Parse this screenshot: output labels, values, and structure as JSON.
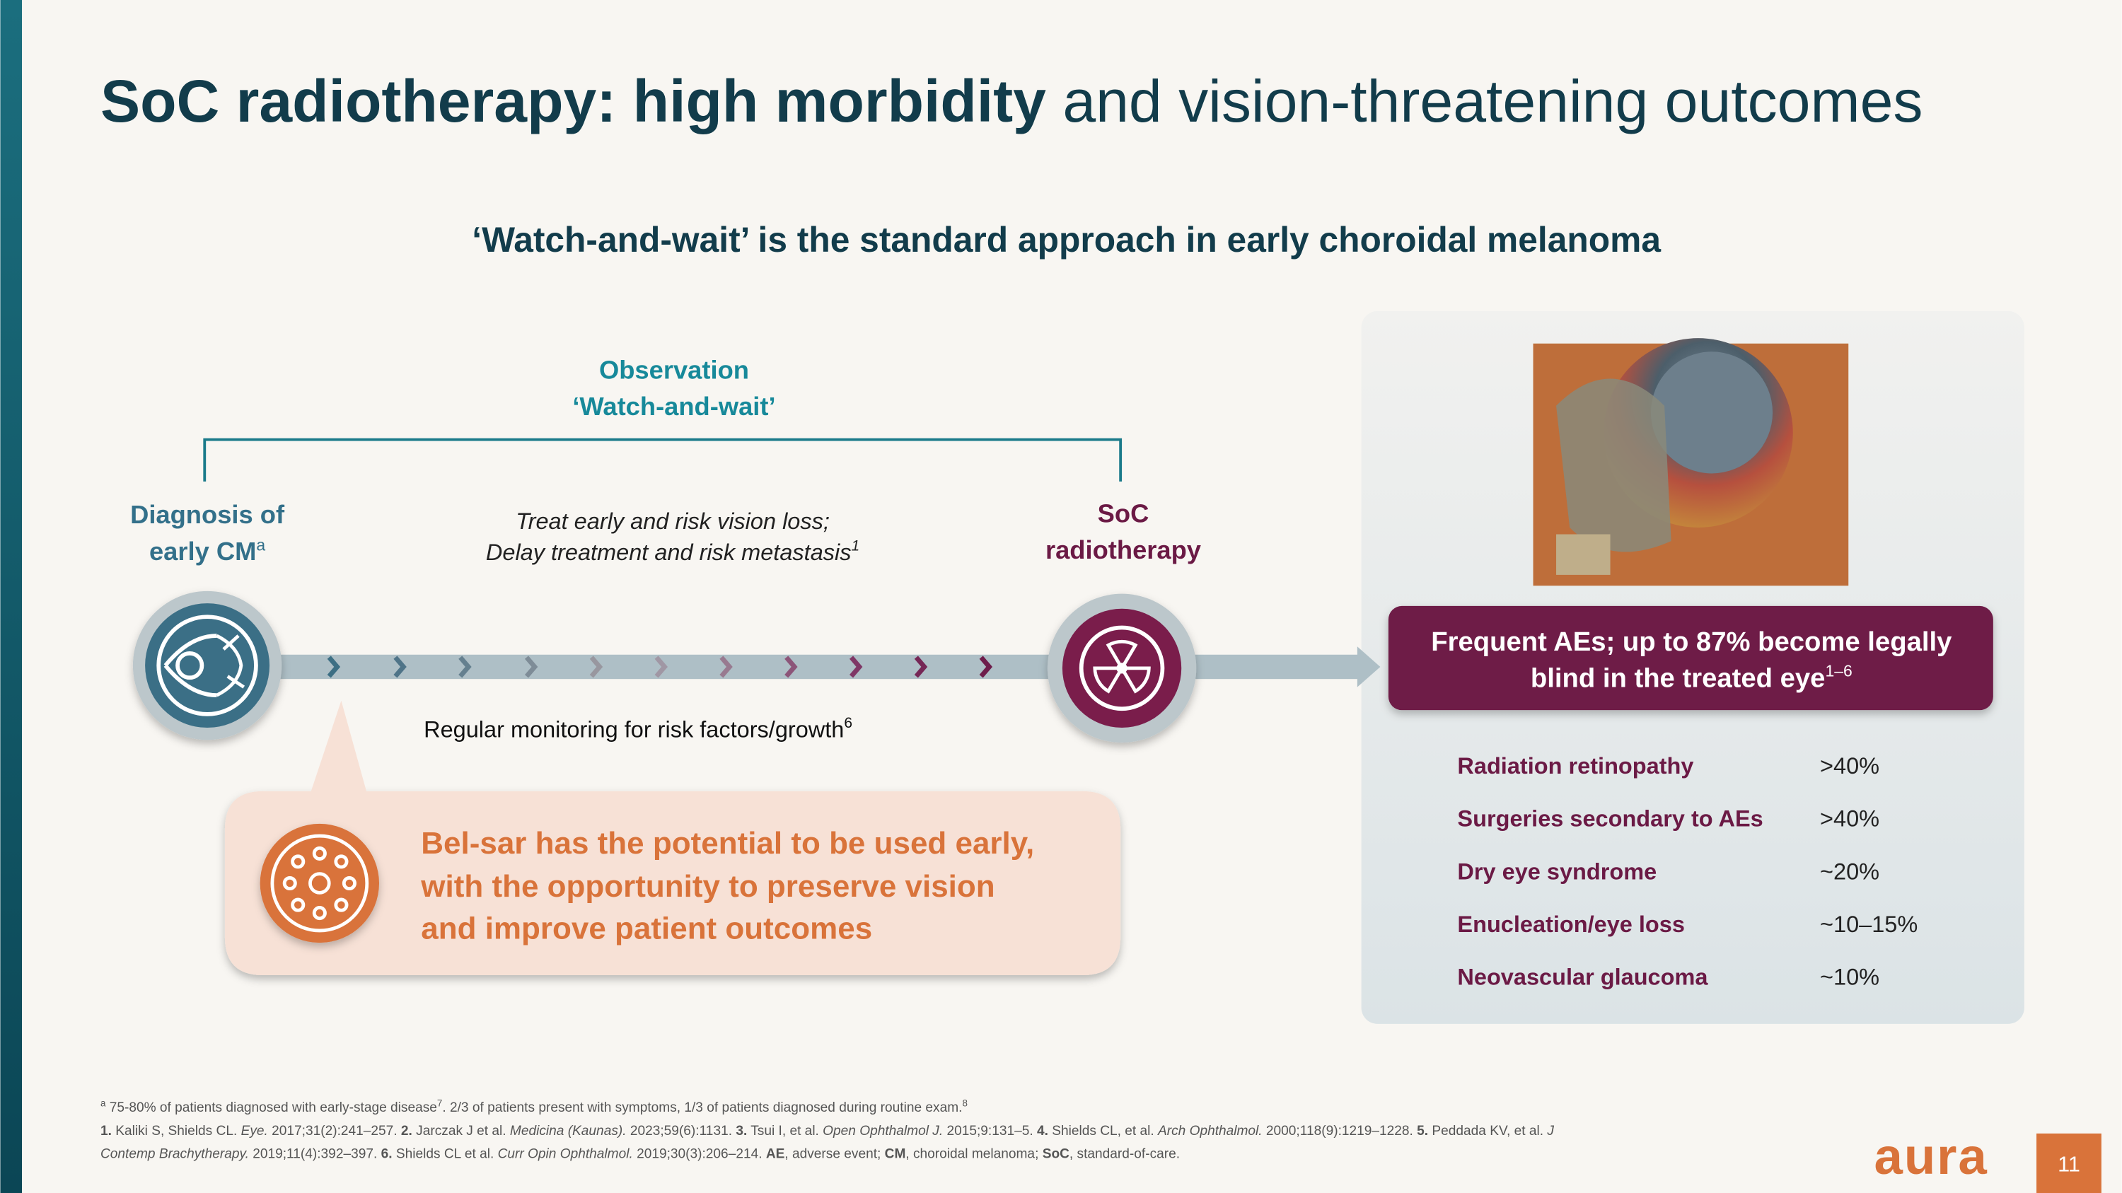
{
  "header": {
    "title_bold": "SoC radiotherapy: high morbidity",
    "title_rest": "and vision-threatening outcomes"
  },
  "subtitle": "‘Watch-and-wait’ is the standard approach in early choroidal melanoma",
  "observation": {
    "line1": "Observation",
    "line2": "‘Watch-and-wait’"
  },
  "diagnosis": {
    "line1": "Diagnosis of",
    "line2": "early CM",
    "sup": "a"
  },
  "tradeoff": {
    "line1": "Treat early and risk vision loss;",
    "line2": "Delay treatment and risk metastasis",
    "sup": "1"
  },
  "soc": {
    "line1": "SoC",
    "line2": "radiotherapy"
  },
  "monitoring": {
    "text": "Regular monitoring for risk factors/growth",
    "sup": "6"
  },
  "belsar": {
    "lines": [
      "Bel-sar has the potential to be used early,",
      "with the opportunity to preserve vision",
      "and improve patient outcomes"
    ]
  },
  "outcome": {
    "line1": "Frequent AEs; up to 87% become legally",
    "line2": "blind in the treated eye",
    "sup": "1–6"
  },
  "aes": {
    "rows": [
      [
        "Radiation retinopathy",
        ">40%"
      ],
      [
        "Surgeries secondary to AEs",
        ">40%"
      ],
      [
        "Dry eye syndrome",
        "~20%"
      ],
      [
        "Enucleation/eye loss",
        "~10–15%"
      ],
      [
        "Neovascular glaucoma",
        "~10%"
      ]
    ]
  },
  "footnotes": [
    [
      "a",
      " 75-80% of patients diagnosed with early-stage disease",
      "7",
      ". 2/3 of patients present with symptoms, 1/3 of patients diagnosed during routine exam.",
      "8"
    ],
    [
      "1.",
      " Kaliki S, Shields CL. ",
      "Eye.",
      " 2017;31(2):241–257. ",
      "2.",
      " Jarczak J et al. ",
      "Medicina (Kaunas).",
      " 2023;59(6):1131. ",
      "3.",
      " Tsui I, et al. ",
      "Open Ophthalmol J.",
      " 2015;9:131–5. ",
      "4.",
      " Shields CL, et al. ",
      "Arch Ophthalmol.",
      " 2000;118(9):1219–1228. ",
      "5.",
      " Peddada KV, et al. ",
      "J"
    ],
    [
      "Contemp Brachytherapy.",
      " 2019;11(4):392–397. ",
      "6.",
      " Shields CL et al. ",
      "Curr Opin Ophthalmol.",
      " 2019;30(3):206–214. ",
      "AE",
      ", adverse event; ",
      "CM",
      ", choroidal melanoma; ",
      "SoC",
      ", standard-of-care."
    ]
  ],
  "logo": "aura",
  "page_number": "11"
}
